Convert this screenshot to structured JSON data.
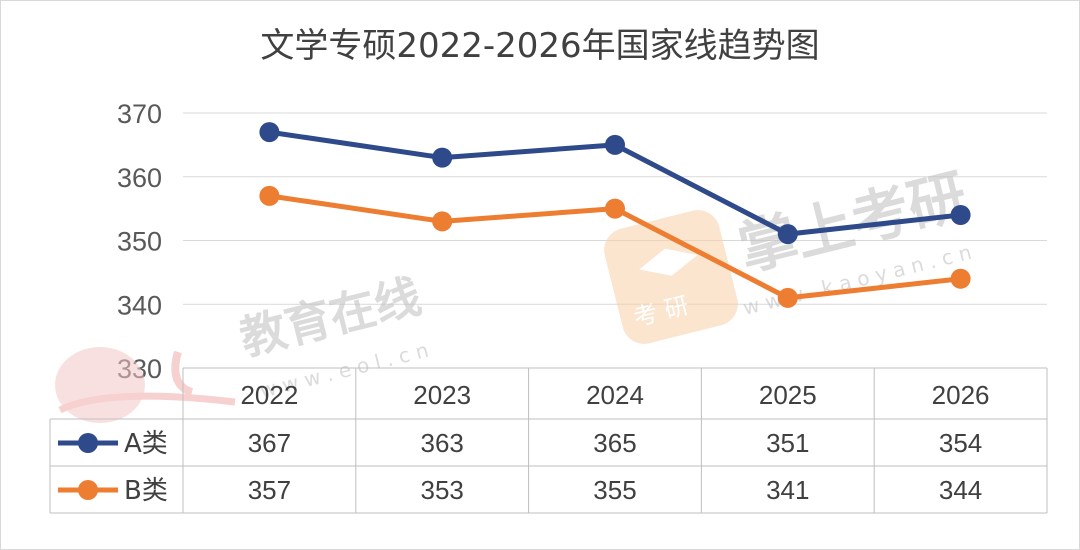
{
  "chart_data": {
    "type": "line",
    "title": "文学专硕2022-2026年国家线趋势图",
    "categories": [
      "2022",
      "2023",
      "2024",
      "2025",
      "2026"
    ],
    "series": [
      {
        "name": "A类",
        "values": [
          367,
          363,
          365,
          351,
          354
        ],
        "color": "#2e4a8b"
      },
      {
        "name": "B类",
        "values": [
          357,
          353,
          355,
          341,
          344
        ],
        "color": "#ed7d31"
      }
    ],
    "ylim": [
      330,
      370
    ],
    "yticks": [
      "330",
      "340",
      "350",
      "360",
      "370"
    ],
    "grid": true,
    "legend": "data-table"
  },
  "watermarks": {
    "eol_text": "教育在线",
    "eol_url": "w w w . e o l . c n",
    "kaoyan_text": "掌上考研",
    "kaoyan_url": "w w w . k a o y a n . c n",
    "badge_text": "考 研"
  }
}
